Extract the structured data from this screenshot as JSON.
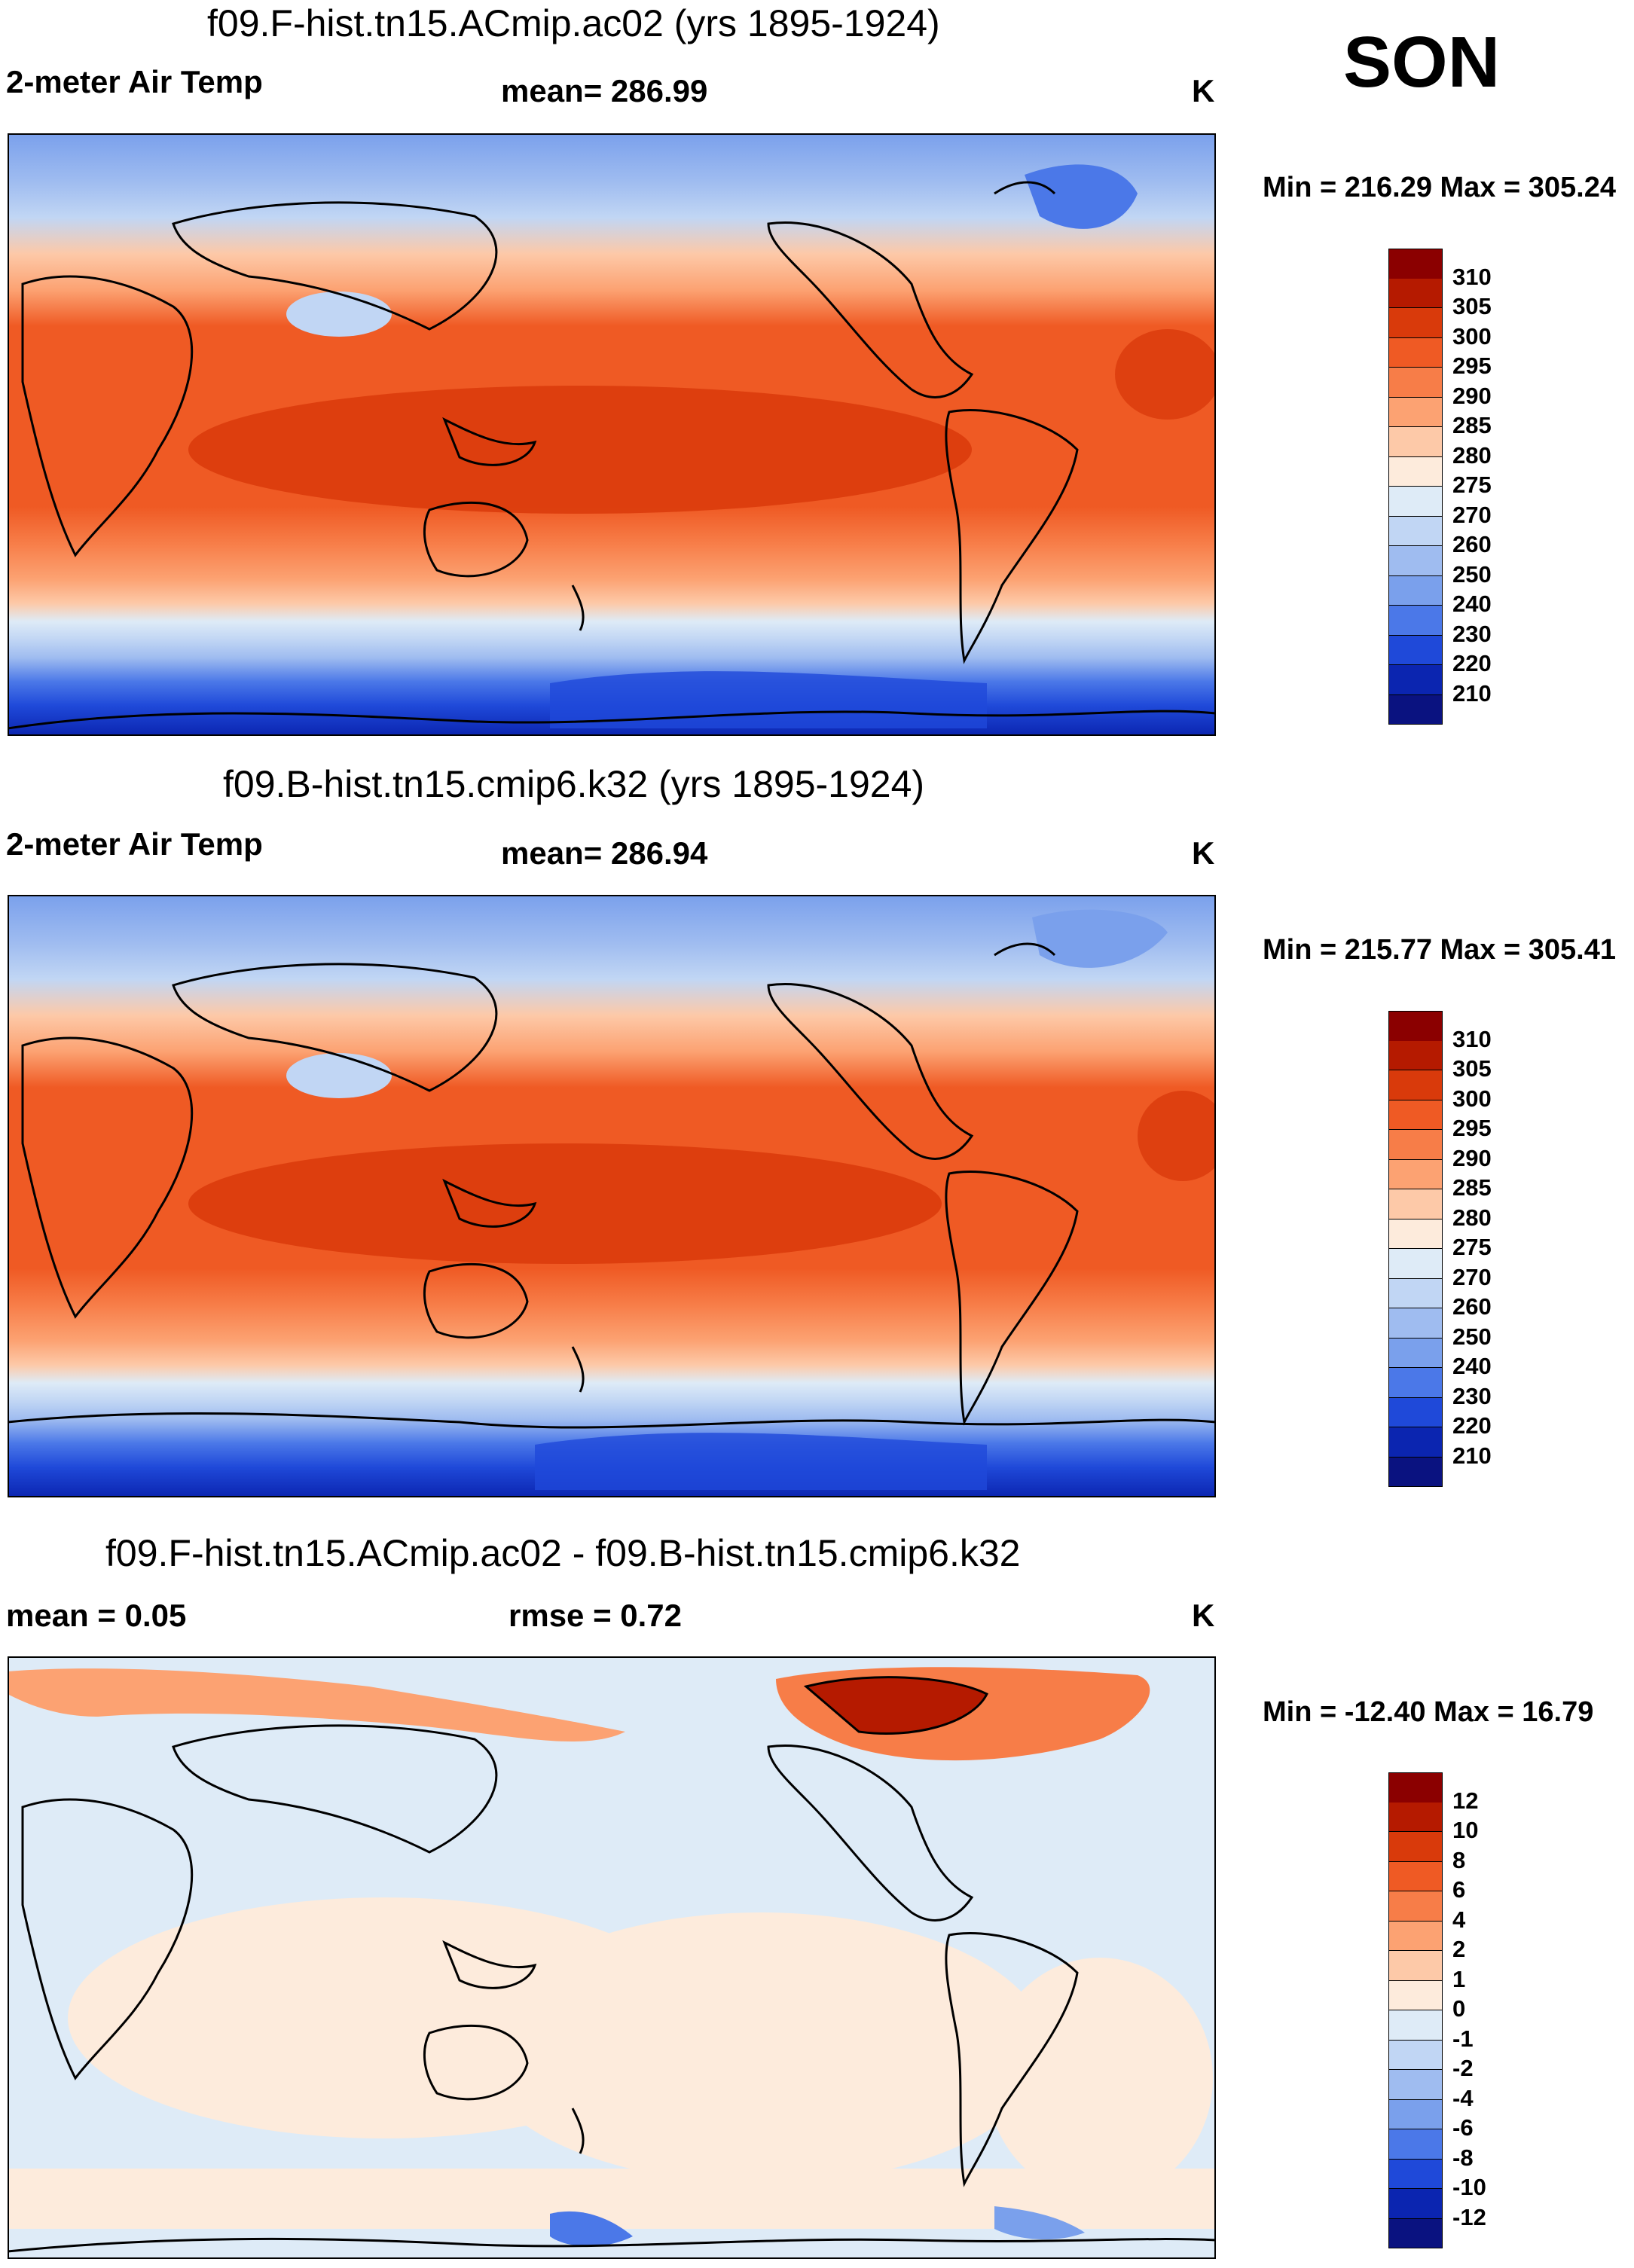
{
  "season": "SON",
  "panels": [
    {
      "title": "f09.F-hist.tn15.ACmip.ac02 (yrs 1895-1924)",
      "left_label": "2-meter Air Temp",
      "center_label": "mean= 286.99",
      "units": "K",
      "minmax": "Min = 216.29 Max = 305.24",
      "colorbar": {
        "levels": [
          "310",
          "305",
          "300",
          "295",
          "290",
          "285",
          "280",
          "275",
          "270",
          "260",
          "250",
          "240",
          "230",
          "220",
          "210"
        ],
        "colors": [
          "#8b0000",
          "#b51a00",
          "#d93a0b",
          "#ef5a24",
          "#f77d48",
          "#fca272",
          "#fdc9a8",
          "#fdebdc",
          "#deebf7",
          "#c1d6f4",
          "#9fbcf0",
          "#7aa0ec",
          "#4b78e8",
          "#1f49d9",
          "#0b25b0",
          "#0a1280"
        ]
      }
    },
    {
      "title": "f09.B-hist.tn15.cmip6.k32 (yrs 1895-1924)",
      "left_label": "2-meter Air Temp",
      "center_label": "mean= 286.94",
      "units": "K",
      "minmax": "Min = 215.77 Max = 305.41",
      "colorbar": {
        "levels": [
          "310",
          "305",
          "300",
          "295",
          "290",
          "285",
          "280",
          "275",
          "270",
          "260",
          "250",
          "240",
          "230",
          "220",
          "210"
        ],
        "colors": [
          "#8b0000",
          "#b51a00",
          "#d93a0b",
          "#ef5a24",
          "#f77d48",
          "#fca272",
          "#fdc9a8",
          "#fdebdc",
          "#deebf7",
          "#c1d6f4",
          "#9fbcf0",
          "#7aa0ec",
          "#4b78e8",
          "#1f49d9",
          "#0b25b0",
          "#0a1280"
        ]
      }
    },
    {
      "title": "f09.F-hist.tn15.ACmip.ac02 - f09.B-hist.tn15.cmip6.k32",
      "left_label": "mean =   0.05",
      "center_label": "rmse =   0.72",
      "units": "K",
      "minmax": "Min = -12.40 Max =  16.79",
      "colorbar": {
        "levels": [
          "12",
          "10",
          "8",
          "6",
          "4",
          "2",
          "1",
          "0",
          "-1",
          "-2",
          "-4",
          "-6",
          "-8",
          "-10",
          "-12"
        ],
        "colors": [
          "#8b0000",
          "#b51a00",
          "#d93a0b",
          "#ef5a24",
          "#f77d48",
          "#fca272",
          "#fdc9a8",
          "#fdebdc",
          "#deebf7",
          "#c1d6f4",
          "#9fbcf0",
          "#7aa0ec",
          "#4b78e8",
          "#1f49d9",
          "#0b25b0",
          "#0a1280"
        ]
      }
    }
  ]
}
